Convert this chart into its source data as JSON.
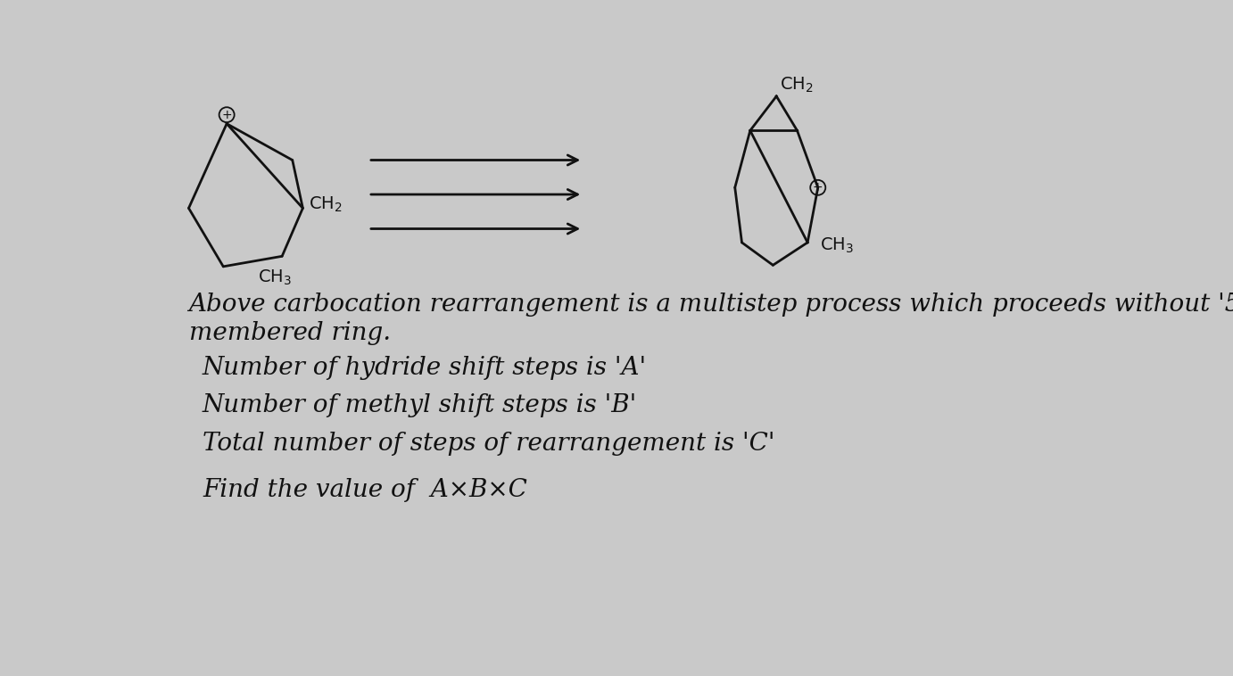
{
  "bg_color": "#c9c9c9",
  "text_color": "#111111",
  "line1": "Above carbocation rearrangement is a multistep process which proceeds without '5'",
  "line2": "membered ring.",
  "line3": "Number of hydride shift steps is 'A'",
  "line4": "Number of methyl shift steps is 'B'",
  "line5": "Total number of steps of rearrangement is 'C'",
  "line6": "Find the value of  A×B×C",
  "font_size_text": 20,
  "font_size_struct": 14
}
